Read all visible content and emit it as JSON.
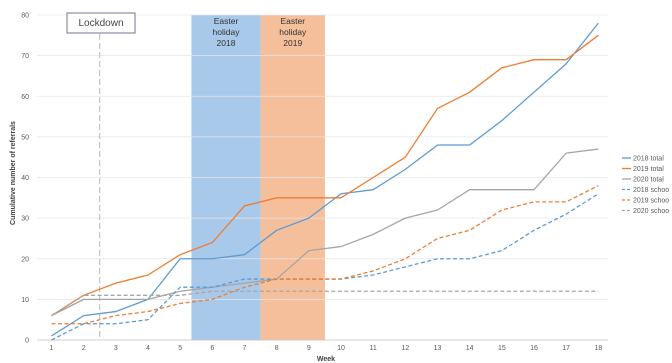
{
  "chart_data": {
    "type": "line",
    "xlabel": "Week",
    "ylabel": "Cumulative number of referrals",
    "x": [
      1,
      2,
      3,
      4,
      5,
      6,
      7,
      8,
      9,
      10,
      11,
      12,
      13,
      14,
      15,
      16,
      17,
      18
    ],
    "ylim": [
      0,
      80
    ],
    "yticks": [
      0,
      10,
      20,
      30,
      40,
      50,
      60,
      70,
      80
    ],
    "grid": true,
    "legend_position": "right",
    "annotations": {
      "lockdown": {
        "label": "Lockdown",
        "x": 2.5
      },
      "bands": [
        {
          "label_lines": [
            "Easter",
            "holiday",
            "2018"
          ],
          "x_start": 5.35,
          "x_end": 7.5,
          "color": "#a9c9ea"
        },
        {
          "label_lines": [
            "Easter",
            "holiday",
            "2019"
          ],
          "x_start": 7.5,
          "x_end": 9.5,
          "color": "#f5bf9c"
        }
      ]
    },
    "series": [
      {
        "name": "2018 total",
        "color": "#5b9bd5",
        "dashed": false,
        "values": [
          1,
          6,
          7,
          10,
          20,
          20,
          21,
          27,
          30,
          36,
          37,
          42,
          48,
          48,
          54,
          61,
          68,
          78
        ]
      },
      {
        "name": "2019 total",
        "color": "#ed7d31",
        "dashed": false,
        "values": [
          6,
          11,
          14,
          16,
          21,
          24,
          33,
          35,
          35,
          35,
          40,
          45,
          57,
          61,
          67,
          69,
          69,
          75
        ]
      },
      {
        "name": "2020 total",
        "color": "#a5a5a5",
        "dashed": false,
        "values": [
          6,
          10,
          10,
          10,
          12,
          13,
          14,
          15,
          22,
          23,
          26,
          30,
          32,
          37,
          37,
          37,
          46,
          47
        ]
      },
      {
        "name": "2018 schoo",
        "color": "#5b9bd5",
        "dashed": true,
        "values": [
          0,
          4,
          4,
          5,
          13,
          13,
          15,
          15,
          15,
          15,
          16,
          18,
          20,
          20,
          22,
          27,
          31,
          36
        ]
      },
      {
        "name": "2019 schoo",
        "color": "#ed7d31",
        "dashed": true,
        "values": [
          4,
          4,
          6,
          7,
          9,
          10,
          13,
          15,
          15,
          15,
          17,
          20,
          25,
          27,
          32,
          34,
          34,
          38
        ]
      },
      {
        "name": "2020 schoo",
        "color": "#a5a5a5",
        "dashed": true,
        "values": [
          6,
          11,
          11,
          11,
          11,
          12,
          12,
          12,
          12,
          12,
          12,
          12,
          12,
          12,
          12,
          12,
          12,
          12
        ]
      }
    ]
  }
}
